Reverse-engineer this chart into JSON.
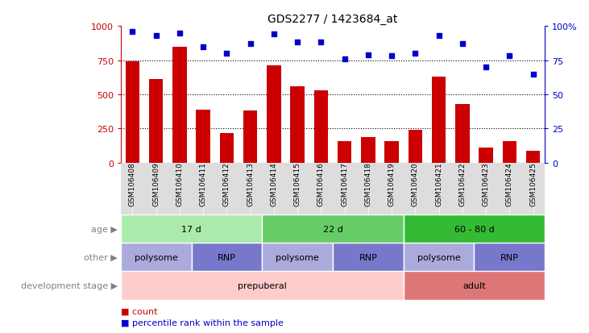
{
  "title": "GDS2277 / 1423684_at",
  "samples": [
    "GSM106408",
    "GSM106409",
    "GSM106410",
    "GSM106411",
    "GSM106412",
    "GSM106413",
    "GSM106414",
    "GSM106415",
    "GSM106416",
    "GSM106417",
    "GSM106418",
    "GSM106419",
    "GSM106420",
    "GSM106421",
    "GSM106422",
    "GSM106423",
    "GSM106424",
    "GSM106425"
  ],
  "counts": [
    740,
    610,
    850,
    390,
    220,
    380,
    710,
    560,
    530,
    160,
    190,
    160,
    240,
    630,
    430,
    110,
    160,
    90
  ],
  "percentiles": [
    96,
    93,
    95,
    85,
    80,
    87,
    94,
    88,
    88,
    76,
    79,
    78,
    80,
    93,
    87,
    70,
    78,
    65
  ],
  "bar_color": "#cc0000",
  "dot_color": "#0000cc",
  "ylim_left": [
    0,
    1000
  ],
  "ylim_right": [
    0,
    100
  ],
  "yticks_left": [
    0,
    250,
    500,
    750,
    1000
  ],
  "yticks_right": [
    0,
    25,
    50,
    75,
    100
  ],
  "age_groups": [
    {
      "label": "17 d",
      "start": 0,
      "end": 5,
      "color": "#aaeaaa"
    },
    {
      "label": "22 d",
      "start": 6,
      "end": 11,
      "color": "#66cc66"
    },
    {
      "label": "60 - 80 d",
      "start": 12,
      "end": 17,
      "color": "#33bb33"
    }
  ],
  "other_groups": [
    {
      "label": "polysome",
      "start": 0,
      "end": 2,
      "color": "#aaaadd"
    },
    {
      "label": "RNP",
      "start": 3,
      "end": 5,
      "color": "#7777cc"
    },
    {
      "label": "polysome",
      "start": 6,
      "end": 8,
      "color": "#aaaadd"
    },
    {
      "label": "RNP",
      "start": 9,
      "end": 11,
      "color": "#7777cc"
    },
    {
      "label": "polysome",
      "start": 12,
      "end": 14,
      "color": "#aaaadd"
    },
    {
      "label": "RNP",
      "start": 15,
      "end": 17,
      "color": "#7777cc"
    }
  ],
  "dev_groups": [
    {
      "label": "prepuberal",
      "start": 0,
      "end": 11,
      "color": "#ffcccc"
    },
    {
      "label": "adult",
      "start": 12,
      "end": 17,
      "color": "#dd7777"
    }
  ],
  "legend_count_color": "#cc0000",
  "legend_percentile_color": "#0000cc",
  "bg_color": "#ffffff",
  "tick_bg_color": "#dddddd"
}
